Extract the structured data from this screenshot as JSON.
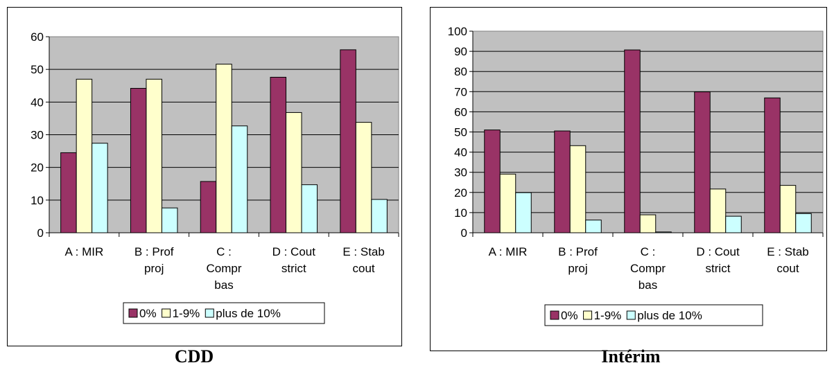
{
  "colors": {
    "series": [
      "#993366",
      "#ffffcc",
      "#ccffff"
    ],
    "plot_bg": "#c0c0c0",
    "frame_bg": "#ffffff"
  },
  "chart_data": [
    {
      "type": "bar",
      "caption": "CDD",
      "categories": [
        [
          "A : MIR"
        ],
        [
          "B : Prof",
          "proj"
        ],
        [
          "C :",
          "Compr",
          "bas"
        ],
        [
          "D : Cout",
          "strict"
        ],
        [
          "E : Stab",
          "cout"
        ]
      ],
      "series": [
        {
          "name": "0%",
          "values": [
            24.5,
            44.2,
            15.7,
            47.6,
            56.0
          ]
        },
        {
          "name": "1-9%",
          "values": [
            47.0,
            47.0,
            51.6,
            36.8,
            33.8
          ]
        },
        {
          "name": "plus de 10%",
          "values": [
            27.4,
            7.6,
            32.7,
            14.7,
            10.2
          ]
        }
      ],
      "ylim": [
        0,
        60
      ],
      "yticks": [
        "0",
        "10",
        "20",
        "30",
        "40",
        "50",
        "60"
      ],
      "grid": true,
      "legend": "bottom"
    },
    {
      "type": "bar",
      "caption": "Intérim",
      "categories": [
        [
          "A : MIR"
        ],
        [
          "B : Prof",
          "proj"
        ],
        [
          "C :",
          "Compr",
          "bas"
        ],
        [
          "D : Cout",
          "strict"
        ],
        [
          "E : Stab",
          "cout"
        ]
      ],
      "series": [
        {
          "name": "0%",
          "values": [
            51.0,
            50.5,
            90.7,
            69.9,
            66.9
          ]
        },
        {
          "name": "1-9%",
          "values": [
            29.1,
            43.2,
            8.9,
            21.7,
            23.5
          ]
        },
        {
          "name": "plus de 10%",
          "values": [
            19.9,
            6.3,
            0.4,
            8.2,
            9.5
          ]
        }
      ],
      "ylim": [
        0,
        100
      ],
      "yticks": [
        "0",
        "10",
        "20",
        "30",
        "40",
        "50",
        "60",
        "70",
        "80",
        "90",
        "100"
      ],
      "grid": true,
      "legend": "bottom"
    }
  ]
}
